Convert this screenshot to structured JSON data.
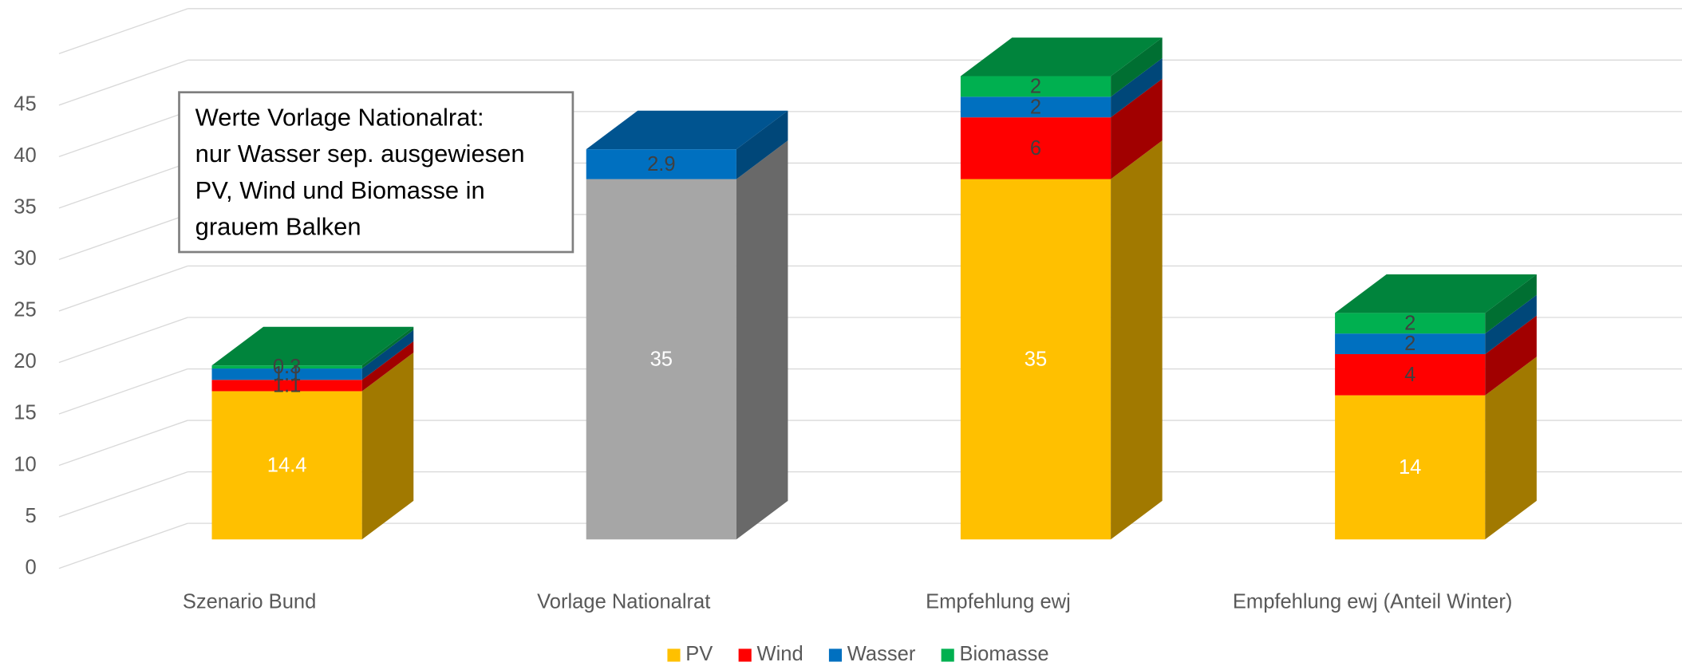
{
  "chart_data": {
    "type": "bar3d_stacked",
    "categories": [
      "Szenario Bund",
      "Vorlage Nationalrat",
      "Empfehlung ewj",
      "Empfehlung ewj (Anteil Winter)"
    ],
    "series": [
      {
        "name": "PV",
        "color": "#ffc000",
        "point_colors": [
          "#ffc000",
          "#a6a6a6",
          "#ffc000",
          "#ffc000"
        ],
        "label_color": "#ffffff",
        "values": [
          14.4,
          35,
          35,
          14
        ]
      },
      {
        "name": "Wind",
        "color": "#ff0000",
        "label_color": "#404040",
        "values": [
          1.1,
          null,
          6,
          4
        ]
      },
      {
        "name": "Wasser",
        "color": "#0070c0",
        "label_color": "#404040",
        "values": [
          1.1,
          2.9,
          2,
          2
        ]
      },
      {
        "name": "Biomasse",
        "color": "#00b050",
        "label_color": "#404040",
        "values": [
          0.3,
          null,
          2,
          2
        ]
      }
    ],
    "ylim": [
      0,
      50
    ],
    "yticks": [
      0,
      5,
      10,
      15,
      20,
      25,
      30,
      35,
      40,
      45
    ],
    "grid": true,
    "legend": "bottom",
    "annotation": [
      "Werte Vorlage Nationalrat:",
      "nur Wasser sep. ausgewiesen",
      "PV, Wind und Biomasse in",
      "grauem Balken"
    ]
  }
}
